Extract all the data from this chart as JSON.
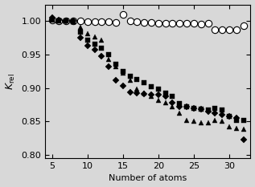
{
  "title": "",
  "xlabel": "Number of atoms",
  "ylabel": "$K_\\mathrm{rel}$",
  "ylim": [
    0.795,
    1.025
  ],
  "xlim": [
    4,
    33
  ],
  "yticks": [
    0.8,
    0.85,
    0.9,
    0.95,
    1.0
  ],
  "xticks": [
    5,
    10,
    15,
    20,
    25,
    30
  ],
  "silicon_x": [
    5,
    6,
    7,
    8,
    9,
    10,
    11,
    12,
    13,
    14,
    15,
    16,
    17,
    18,
    19,
    20,
    21,
    22,
    23,
    24,
    25,
    26,
    27,
    28,
    29,
    30,
    31,
    32
  ],
  "silicon_y": [
    1.005,
    1.002,
    1.001,
    1.0,
    0.975,
    0.963,
    0.957,
    0.947,
    0.932,
    0.912,
    0.903,
    0.893,
    0.892,
    0.891,
    0.89,
    0.89,
    0.888,
    0.878,
    0.872,
    0.872,
    0.87,
    0.868,
    0.865,
    0.862,
    0.86,
    0.858,
    0.855,
    0.823
  ],
  "germanium_x": [
    5,
    6,
    7,
    8,
    9,
    10,
    11,
    12,
    13,
    14,
    15,
    16,
    17,
    18,
    19,
    20,
    21,
    22,
    23,
    24,
    25,
    26,
    27,
    28,
    29,
    30,
    31,
    32
  ],
  "germanium_y": [
    1.002,
    1.001,
    1.0,
    0.999,
    0.984,
    0.972,
    0.966,
    0.96,
    0.95,
    0.935,
    0.925,
    0.917,
    0.913,
    0.908,
    0.902,
    0.898,
    0.892,
    0.887,
    0.877,
    0.872,
    0.87,
    0.868,
    0.867,
    0.87,
    0.867,
    0.857,
    0.852,
    0.852
  ],
  "tin_x": [
    5,
    6,
    7,
    8,
    9,
    10,
    11,
    12,
    13,
    14,
    15,
    16,
    17,
    18,
    19,
    20,
    21,
    22,
    23,
    24,
    25,
    26,
    27,
    28,
    29,
    30,
    31,
    32
  ],
  "tin_y": [
    1.003,
    1.001,
    1.0,
    0.999,
    0.991,
    0.981,
    0.977,
    0.972,
    0.943,
    0.932,
    0.922,
    0.912,
    0.898,
    0.892,
    0.888,
    0.882,
    0.878,
    0.872,
    0.862,
    0.852,
    0.85,
    0.848,
    0.848,
    0.852,
    0.85,
    0.842,
    0.84,
    0.838
  ],
  "lead_x": [
    5,
    6,
    7,
    8,
    9,
    10,
    11,
    12,
    13,
    14,
    15,
    16,
    17,
    18,
    19,
    20,
    21,
    22,
    23,
    24,
    25,
    26,
    27,
    28,
    29,
    30,
    31,
    32
  ],
  "lead_y": [
    1.002,
    1.001,
    1.0,
    1.0,
    1.0,
    0.999,
    0.999,
    0.999,
    0.999,
    0.998,
    1.01,
    1.0,
    0.999,
    0.998,
    0.998,
    0.997,
    0.997,
    0.997,
    0.997,
    0.997,
    0.997,
    0.996,
    0.997,
    0.987,
    0.987,
    0.987,
    0.987,
    0.993
  ],
  "marker_size": 4.5,
  "bg_color": "#d8d8d8"
}
